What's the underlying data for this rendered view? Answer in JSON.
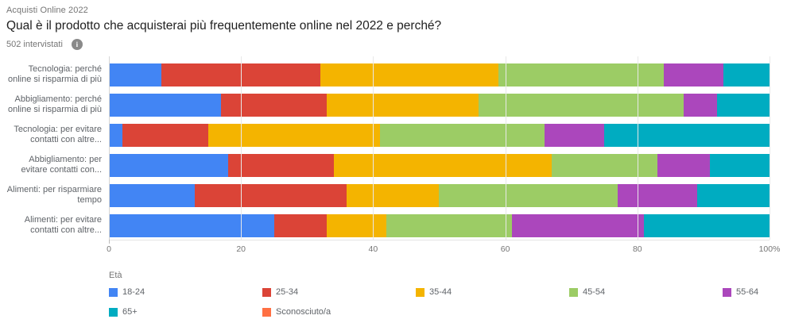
{
  "header": {
    "kicker": "Acquisti Online 2022",
    "title": "Qual è il prodotto che acquisterai più frequentemente online nel 2022 e perché?",
    "respondents": "502 intervistati"
  },
  "chart_data": {
    "type": "bar",
    "orientation": "horizontal",
    "stacked": true,
    "stack_mode": "percent",
    "title": "Qual è il prodotto che acquisterai più frequentemente online nel 2022 e perché?",
    "legend_title": "Età",
    "legend_position": "bottom",
    "grid": true,
    "xlim": [
      0,
      100
    ],
    "x_tick_values": [
      0,
      20,
      40,
      60,
      80,
      100
    ],
    "x_tick_labels": [
      "0",
      "20",
      "40",
      "60",
      "80",
      "100%"
    ],
    "categories": [
      "Tecnologia: perché online si risparmia di più",
      "Abbigliamento: perché online si risparmia di più",
      "Tecnologia: per evitare contatti con altre...",
      "Abbigliamento: per evitare contatti con...",
      "Alimenti: per risparmiare tempo",
      "Alimenti: per evitare contatti con altre..."
    ],
    "series": [
      {
        "name": "18-24",
        "color": "#4285F4",
        "values": [
          8,
          17,
          2,
          18,
          13,
          25
        ]
      },
      {
        "name": "25-34",
        "color": "#DB4437",
        "values": [
          24,
          16,
          13,
          16,
          23,
          8
        ]
      },
      {
        "name": "35-44",
        "color": "#F4B400",
        "values": [
          27,
          23,
          26,
          33,
          14,
          9
        ]
      },
      {
        "name": "45-54",
        "color": "#9CCC65",
        "values": [
          25,
          31,
          25,
          16,
          27,
          19
        ]
      },
      {
        "name": "55-64",
        "color": "#AB47BC",
        "values": [
          9,
          5,
          9,
          8,
          12,
          20
        ]
      },
      {
        "name": "65+",
        "color": "#00ACC1",
        "values": [
          7,
          8,
          25,
          9,
          11,
          19
        ]
      },
      {
        "name": "Sconosciuto/a",
        "color": "#FF7043",
        "values": [
          0,
          0,
          0,
          0,
          0,
          0
        ]
      }
    ]
  },
  "colors": {
    "gridline": "#e8e8e8",
    "axis_text": "#757575",
    "label_text": "#5f6368",
    "title_text": "#212121"
  }
}
